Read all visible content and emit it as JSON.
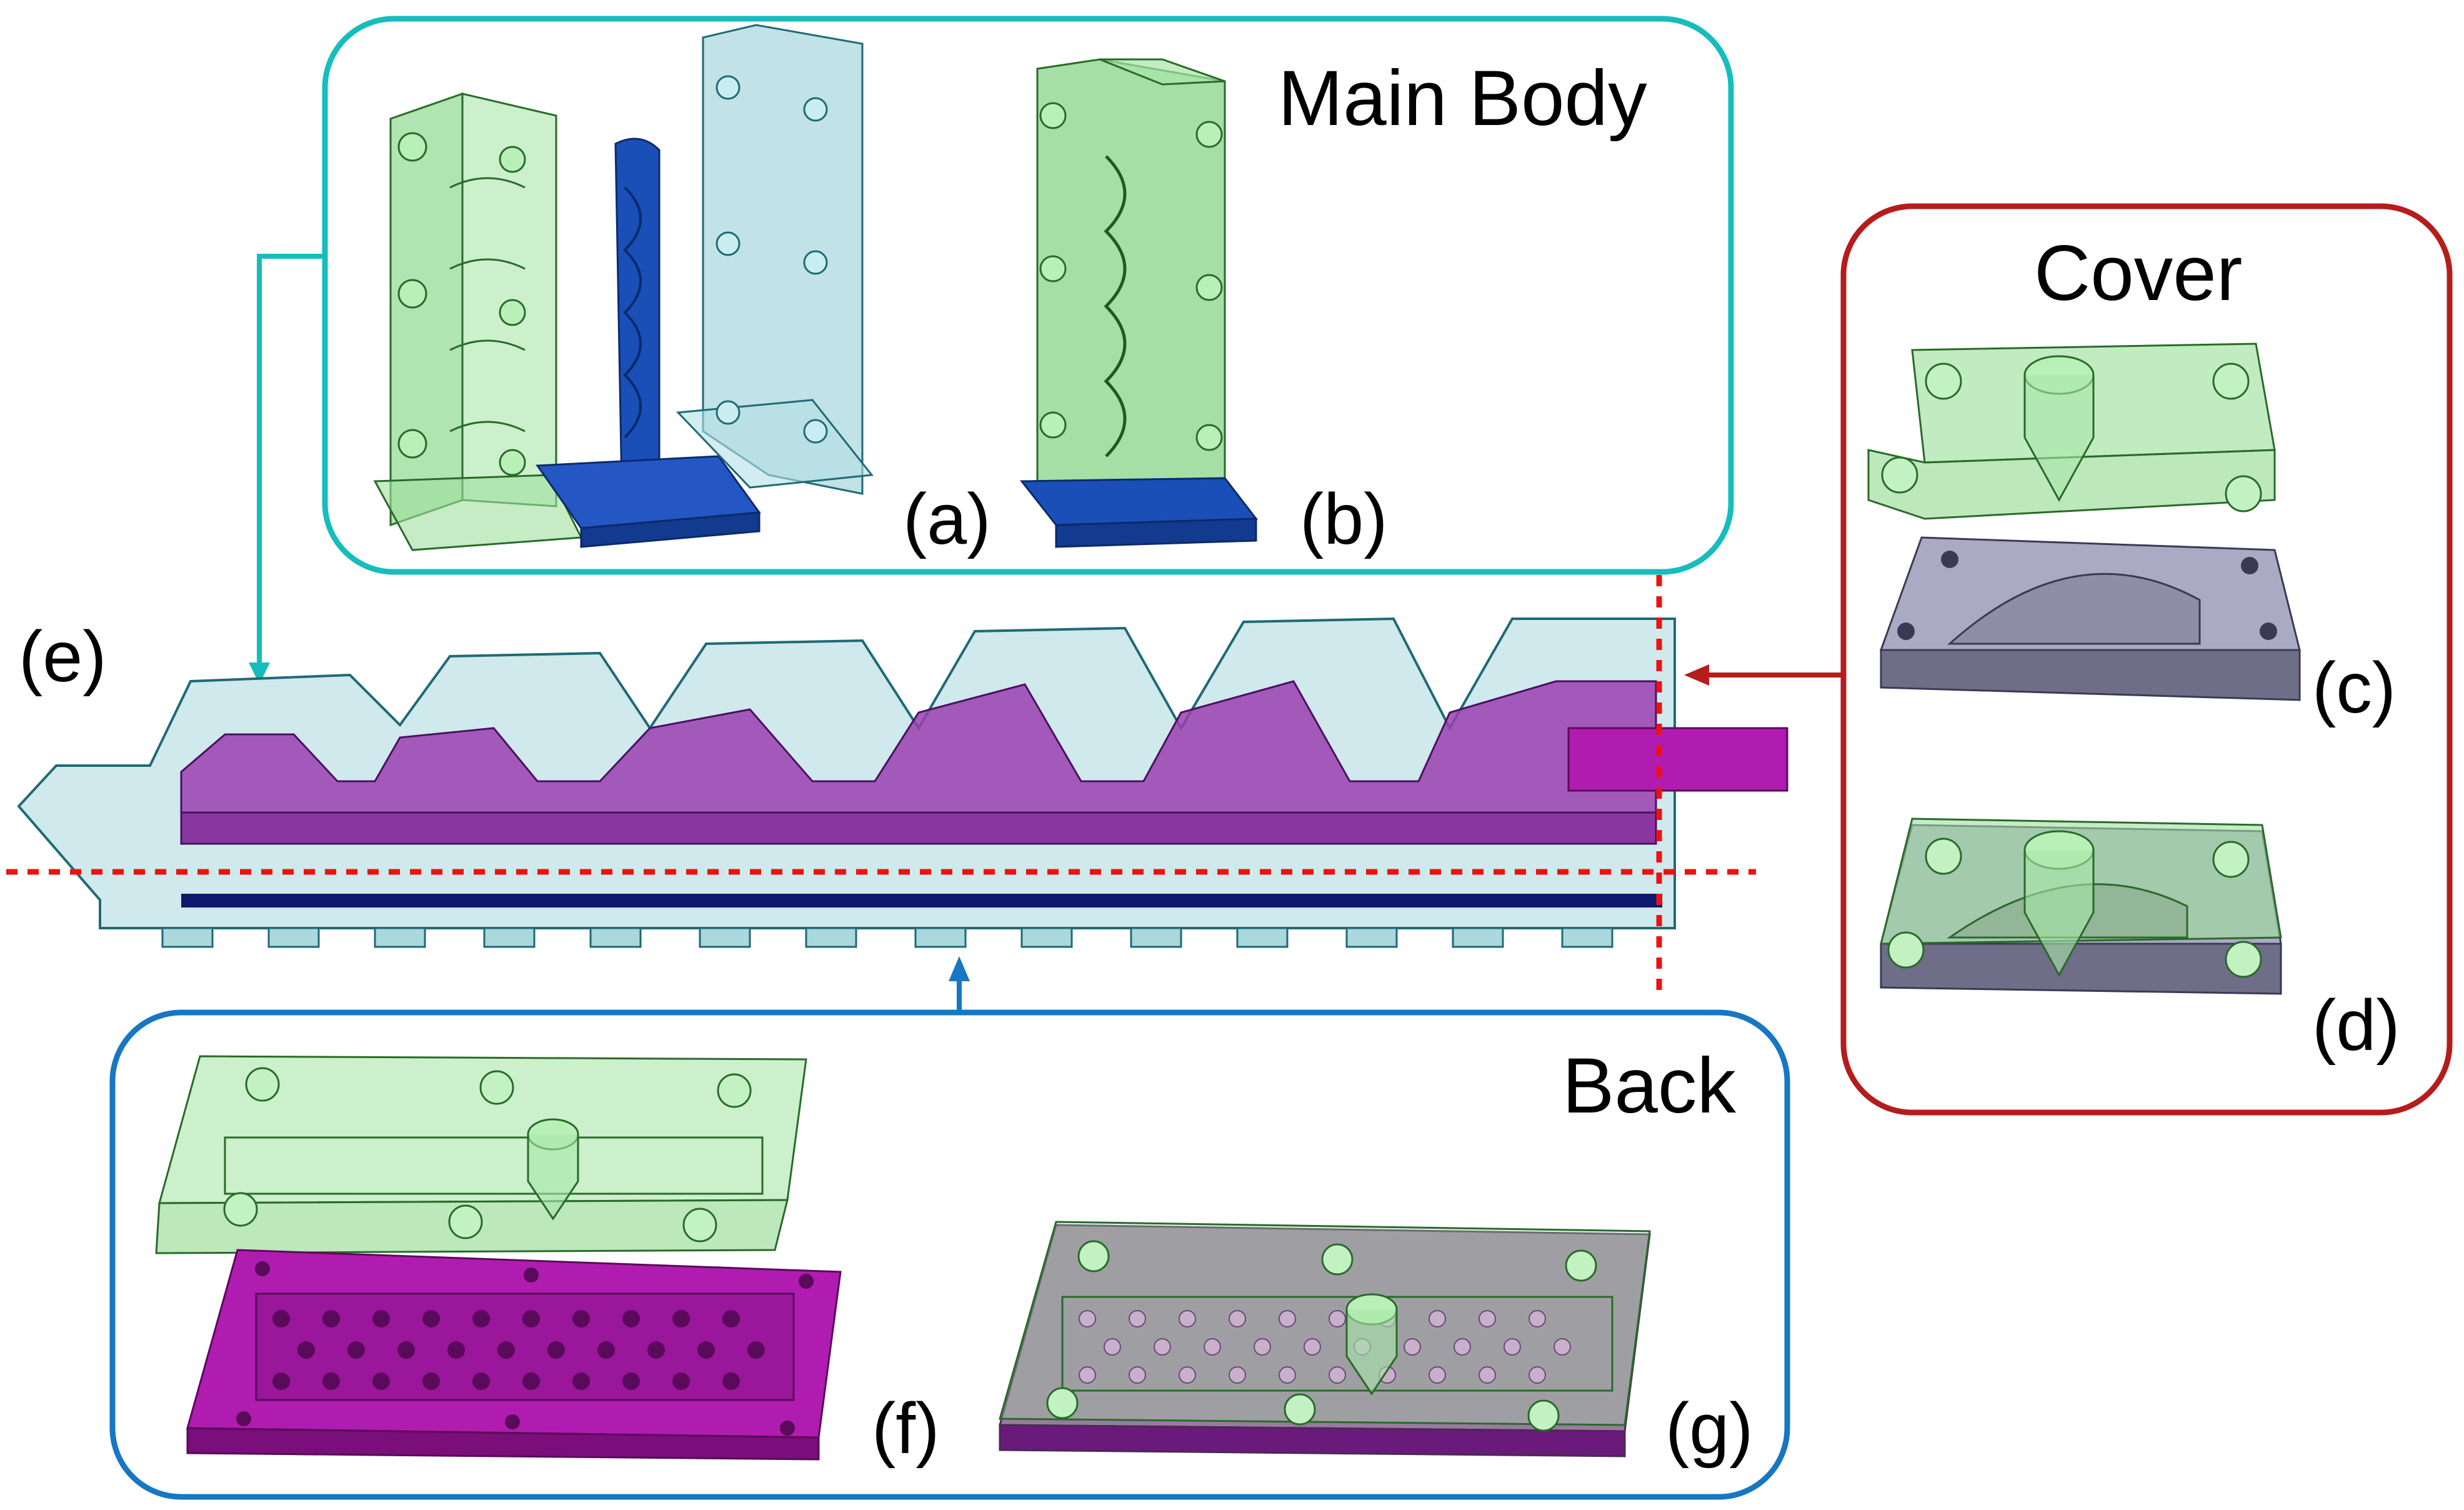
{
  "panels": {
    "main_body": {
      "title": "Main Body",
      "labels": [
        "(a)",
        "(b)"
      ]
    },
    "cover": {
      "title": "Cover",
      "labels": [
        "(c)",
        "(d)"
      ]
    },
    "back": {
      "title": "Back",
      "labels": [
        "(f)",
        "(g)"
      ]
    },
    "assembly": {
      "label": "(e)"
    }
  },
  "colors": {
    "main_body_frame": "#17bdbd",
    "cover_frame": "#b51c1c",
    "back_frame": "#1777c2",
    "section_line": "#ee1111",
    "green_part": "#8fd88f",
    "blue_mold": "#1a4fb8",
    "teal_part": "#9fd3d8",
    "purple_channel": "#9a3fb0",
    "magenta_plate": "#b01cb0",
    "gray_plate": "#8a8aa4",
    "dark_strip": "#0d1a6e"
  }
}
